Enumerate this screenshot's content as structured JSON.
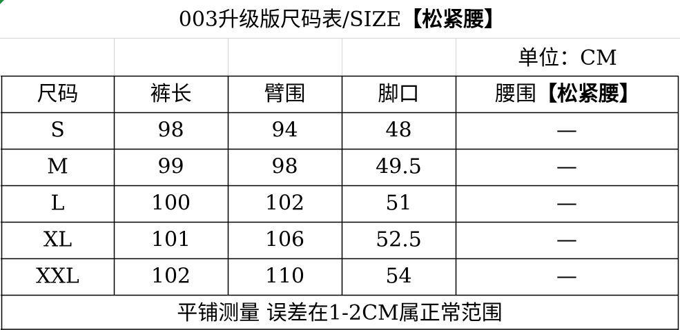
{
  "title": {
    "text": "003升级版尺码表/SIZE",
    "bold": "【松紧腰】"
  },
  "unit": "单位：CM",
  "table": {
    "header": [
      "尺码",
      "裤长",
      "臂围",
      "脚口"
    ],
    "waist_header": {
      "text": "腰围",
      "bold": "【松紧腰】"
    },
    "rows": [
      [
        "S",
        "98",
        "94",
        "48",
        "—"
      ],
      [
        "M",
        "99",
        "98",
        "49.5",
        "—"
      ],
      [
        "L",
        "100",
        "102",
        "51",
        "—"
      ],
      [
        "XL",
        "101",
        "106",
        "52.5",
        "—"
      ],
      [
        "XXL",
        "102",
        "110",
        "54",
        "—"
      ]
    ]
  },
  "footer": "平铺测量 误差在1-2CM属正常范围"
}
